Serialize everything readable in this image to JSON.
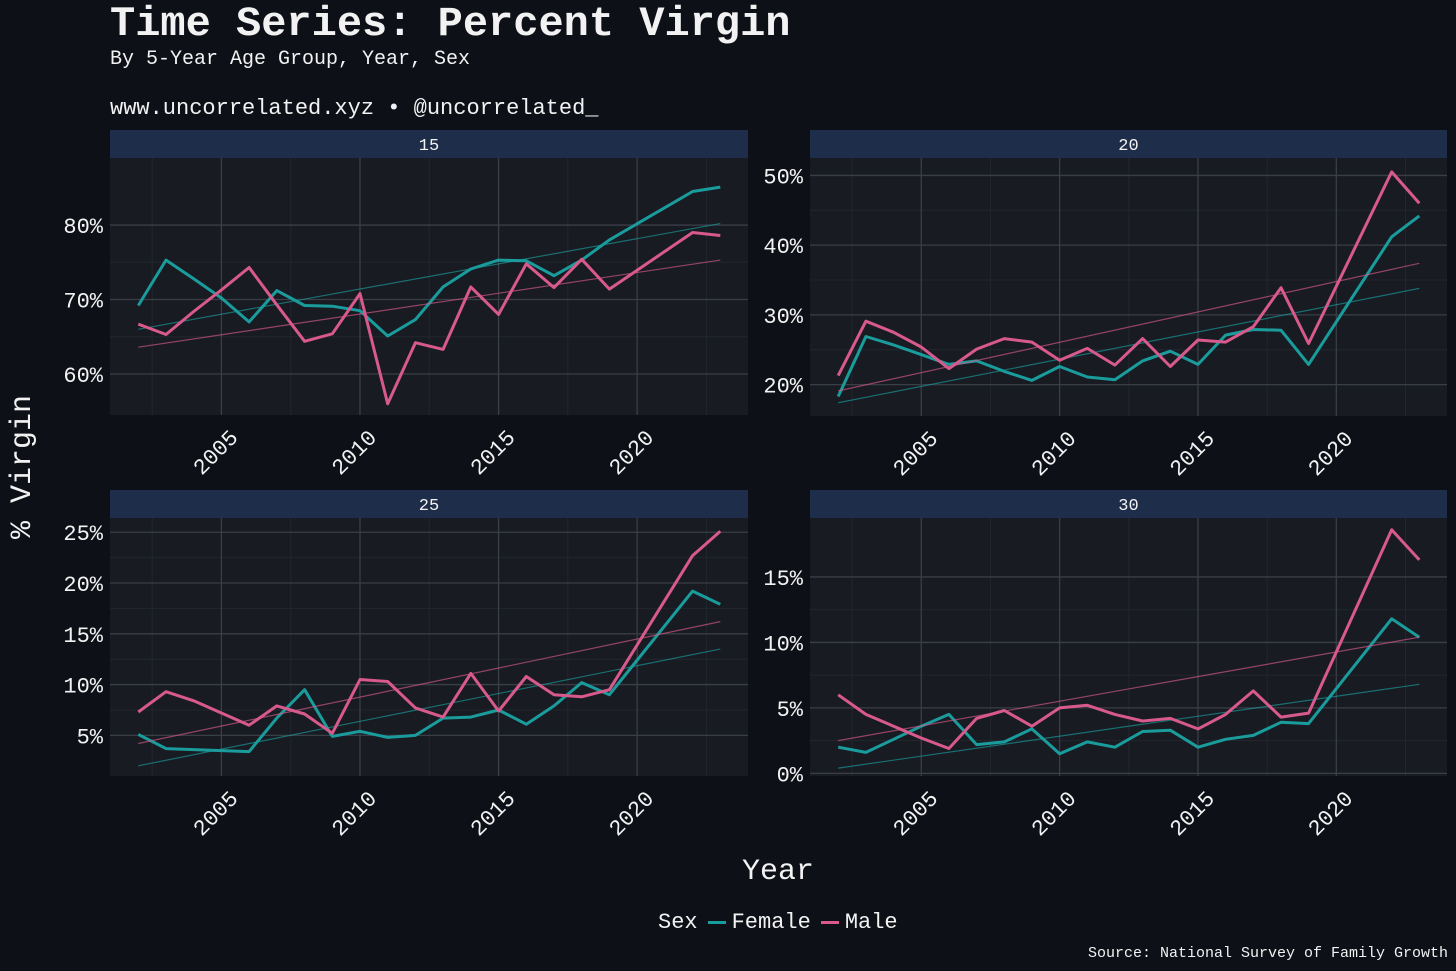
{
  "title": "Time Series: Percent Virgin",
  "subtitle": "By 5-Year Age Group, Year, Sex",
  "site": "www.uncorrelated.xyz • @uncorrelated_",
  "source": "Source: National Survey of Family Growth",
  "ylabel": "% Virgin",
  "xlabel": "Year",
  "legend": {
    "title": "Sex",
    "items": [
      "Female",
      "Male"
    ]
  },
  "colors": {
    "Female": "#1a9c9c",
    "Male": "#d85a8c",
    "strip": "#1e2d4a",
    "panel": "#181b22",
    "background": "#0d1017"
  },
  "chart_data": [
    {
      "type": "line",
      "panel": "15",
      "x": [
        2002,
        2003,
        2004,
        2005,
        2006,
        2007,
        2008,
        2009,
        2010,
        2011,
        2012,
        2013,
        2014,
        2015,
        2016,
        2017,
        2018,
        2019,
        2020,
        2021,
        2022,
        2023
      ],
      "xticks": [
        "2005",
        "2010",
        "2015",
        "2020"
      ],
      "ylim": [
        54.5,
        89
      ],
      "yticks": [
        60,
        70,
        80
      ],
      "ytick_labels": [
        "60%",
        "70%",
        "80%"
      ],
      "series": [
        {
          "name": "Female",
          "values": [
            69.2,
            75.3,
            72.8,
            70.2,
            67.0,
            71.2,
            69.2,
            69.1,
            68.5,
            65.1,
            67.3,
            71.7,
            74.1,
            75.3,
            75.2,
            73.2,
            75.3,
            78.0,
            null,
            null,
            84.5,
            85.1
          ],
          "trend": [
            66.0,
            80.2
          ]
        },
        {
          "name": "Male",
          "values": [
            66.7,
            65.3,
            68.4,
            71.3,
            74.3,
            69.3,
            64.4,
            65.4,
            70.8,
            56.0,
            64.2,
            63.3,
            71.7,
            68.0,
            74.8,
            71.6,
            75.4,
            71.4,
            null,
            null,
            79.0,
            78.6
          ],
          "trend": [
            63.6,
            75.3
          ]
        }
      ]
    },
    {
      "type": "line",
      "panel": "20",
      "x": [
        2002,
        2003,
        2004,
        2005,
        2006,
        2007,
        2008,
        2009,
        2010,
        2011,
        2012,
        2013,
        2014,
        2015,
        2016,
        2017,
        2018,
        2019,
        2020,
        2021,
        2022,
        2023
      ],
      "xticks": [
        "2005",
        "2010",
        "2015",
        "2020"
      ],
      "ylim": [
        15.5,
        52.5
      ],
      "yticks": [
        20,
        30,
        40,
        50
      ],
      "ytick_labels": [
        "20%",
        "30%",
        "40%",
        "50%"
      ],
      "series": [
        {
          "name": "Female",
          "values": [
            18.3,
            26.9,
            25.7,
            24.3,
            22.9,
            23.4,
            21.9,
            20.6,
            22.6,
            21.1,
            20.7,
            23.4,
            24.8,
            22.9,
            27.1,
            27.9,
            27.8,
            22.9,
            null,
            null,
            41.2,
            44.2
          ],
          "trend": [
            17.4,
            33.8
          ]
        },
        {
          "name": "Male",
          "values": [
            21.3,
            29.1,
            27.5,
            25.4,
            22.3,
            25.1,
            26.6,
            26.1,
            23.5,
            25.2,
            22.8,
            26.6,
            22.6,
            26.4,
            26.1,
            28.3,
            33.9,
            25.9,
            null,
            null,
            50.5,
            46.0
          ],
          "trend": [
            19.1,
            37.4
          ]
        }
      ]
    },
    {
      "type": "line",
      "panel": "25",
      "x": [
        2002,
        2003,
        2004,
        2005,
        2006,
        2007,
        2008,
        2009,
        2010,
        2011,
        2012,
        2013,
        2014,
        2015,
        2016,
        2017,
        2018,
        2019,
        2020,
        2021,
        2022,
        2023
      ],
      "xticks": [
        "2005",
        "2010",
        "2015",
        "2020"
      ],
      "ylim": [
        1,
        26.4
      ],
      "yticks": [
        5,
        10,
        15,
        20,
        25
      ],
      "ytick_labels": [
        "5%",
        "10%",
        "15%",
        "20%",
        "25%"
      ],
      "series": [
        {
          "name": "Female",
          "values": [
            5.1,
            3.7,
            3.6,
            3.5,
            3.4,
            6.7,
            9.5,
            4.9,
            5.4,
            4.8,
            5.0,
            6.7,
            6.8,
            7.5,
            6.1,
            7.9,
            10.2,
            9.0,
            null,
            null,
            19.2,
            17.9
          ],
          "trend": [
            2.0,
            13.5
          ]
        },
        {
          "name": "Male",
          "values": [
            7.3,
            9.3,
            8.4,
            7.2,
            6.0,
            7.9,
            7.1,
            5.2,
            10.5,
            10.3,
            7.7,
            6.8,
            11.1,
            7.4,
            10.8,
            9.0,
            8.8,
            9.5,
            null,
            null,
            22.7,
            25.1
          ],
          "trend": [
            4.2,
            16.2
          ]
        }
      ]
    },
    {
      "type": "line",
      "panel": "30",
      "x": [
        2002,
        2003,
        2004,
        2005,
        2006,
        2007,
        2008,
        2009,
        2010,
        2011,
        2012,
        2013,
        2014,
        2015,
        2016,
        2017,
        2018,
        2019,
        2020,
        2021,
        2022,
        2023
      ],
      "xticks": [
        "2005",
        "2010",
        "2015",
        "2020"
      ],
      "ylim": [
        -0.2,
        19.5
      ],
      "yticks": [
        0,
        5,
        10,
        15
      ],
      "ytick_labels": [
        "0%",
        "5%",
        "10%",
        "15%"
      ],
      "series": [
        {
          "name": "Female",
          "values": [
            2.0,
            1.6,
            2.6,
            3.6,
            4.5,
            2.2,
            2.4,
            3.4,
            1.5,
            2.4,
            2.0,
            3.2,
            3.3,
            2.0,
            2.6,
            2.9,
            3.9,
            3.8,
            null,
            null,
            11.8,
            10.4
          ],
          "trend": [
            0.4,
            6.8
          ]
        },
        {
          "name": "Male",
          "values": [
            6.0,
            4.5,
            3.6,
            2.7,
            1.9,
            4.2,
            4.8,
            3.6,
            5.0,
            5.2,
            4.5,
            4.0,
            4.2,
            3.4,
            4.5,
            6.3,
            4.3,
            4.6,
            null,
            null,
            18.6,
            16.3
          ],
          "trend": [
            2.5,
            10.4
          ]
        }
      ]
    }
  ]
}
